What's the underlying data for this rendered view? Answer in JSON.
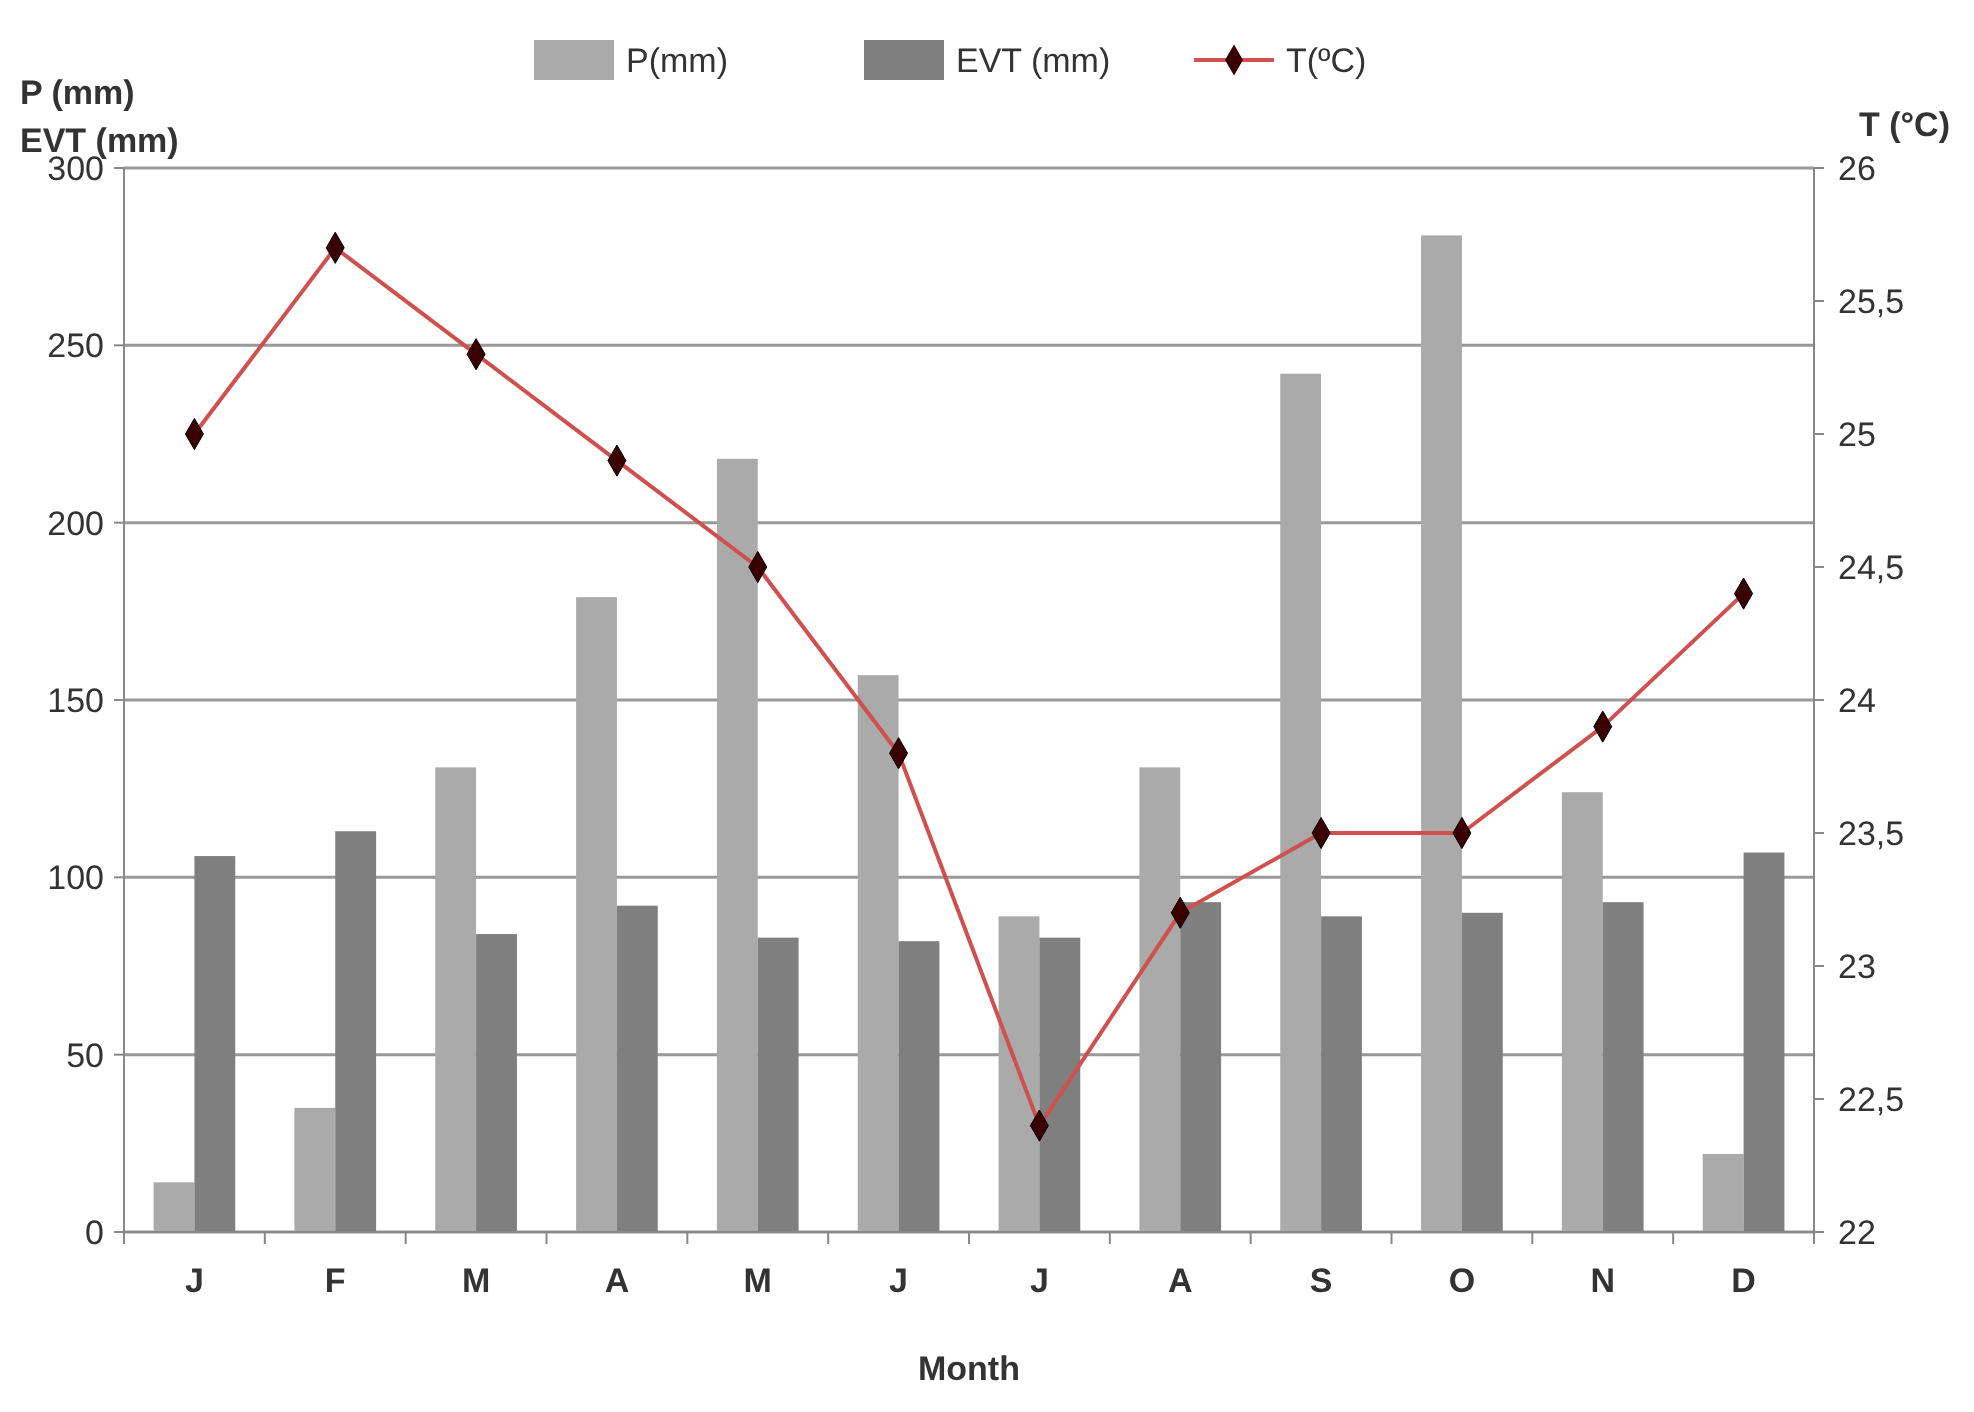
{
  "chart_data": {
    "type": "bar",
    "xlabel": "Month",
    "ylabel": "P (mm)\nEVT (mm)",
    "y2label": "T (°C)",
    "categories": [
      "J",
      "F",
      "M",
      "A",
      "M",
      "J",
      "J",
      "A",
      "S",
      "O",
      "N",
      "D"
    ],
    "series": [
      {
        "name": "P(mm)",
        "color": "#aaaaaa",
        "values": [
          14,
          35,
          131,
          179,
          218,
          157,
          89,
          131,
          242,
          281,
          124,
          22
        ]
      },
      {
        "name": "EVT (mm)",
        "color": "#7f7f7f",
        "values": [
          106,
          113,
          84,
          92,
          83,
          82,
          83,
          93,
          89,
          90,
          93,
          107
        ]
      },
      {
        "name": "T(ºC)",
        "type": "line",
        "axis": "y2",
        "color": "#d05050",
        "marker": "diamond",
        "values": [
          25.0,
          25.7,
          25.3,
          24.9,
          24.5,
          23.8,
          22.4,
          23.2,
          23.5,
          23.5,
          23.9,
          24.4
        ]
      }
    ],
    "ylim": [
      0,
      300
    ],
    "yticks": [
      0,
      50,
      100,
      150,
      200,
      250,
      300
    ],
    "y2lim": [
      22,
      26
    ],
    "y2ticks": [
      22,
      {
        "value": 22.5,
        "label": "22,5"
      },
      23,
      {
        "value": 23.5,
        "label": "23,5"
      },
      24,
      {
        "value": 24.5,
        "label": "24,5"
      },
      25,
      {
        "value": 25.5,
        "label": "25,5"
      },
      26
    ],
    "grid": "y",
    "legend": "top"
  }
}
